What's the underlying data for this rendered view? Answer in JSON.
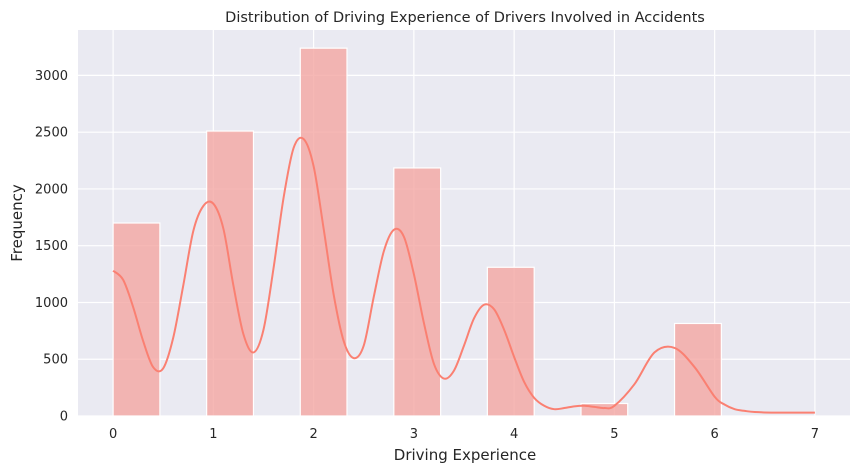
{
  "chart_data": {
    "type": "bar",
    "title": "Distribution of Driving Experience of Drivers Involved in Accidents",
    "xlabel": "Driving Experience",
    "ylabel": "Frequency",
    "xlim": [
      -0.35,
      7.35
    ],
    "ylim": [
      0,
      3400
    ],
    "xticks": [
      0,
      1,
      2,
      3,
      4,
      5,
      6,
      7
    ],
    "yticks": [
      0,
      500,
      1000,
      1500,
      2000,
      2500,
      3000
    ],
    "grid": true,
    "bars": [
      {
        "x0": 0.0,
        "x1": 0.467,
        "value": 1700
      },
      {
        "x0": 0.933,
        "x1": 1.4,
        "value": 2510
      },
      {
        "x0": 1.867,
        "x1": 2.333,
        "value": 3240
      },
      {
        "x0": 2.8,
        "x1": 3.267,
        "value": 2185
      },
      {
        "x0": 3.733,
        "x1": 4.2,
        "value": 1310
      },
      {
        "x0": 4.667,
        "x1": 5.133,
        "value": 110
      },
      {
        "x0": 5.6,
        "x1": 6.067,
        "value": 815
      }
    ],
    "kde": {
      "x": [
        0.0,
        0.1,
        0.2,
        0.3,
        0.4,
        0.5,
        0.6,
        0.7,
        0.8,
        0.9,
        1.0,
        1.1,
        1.2,
        1.3,
        1.4,
        1.5,
        1.6,
        1.7,
        1.8,
        1.9,
        2.0,
        2.1,
        2.2,
        2.3,
        2.4,
        2.5,
        2.6,
        2.7,
        2.8,
        2.9,
        3.0,
        3.1,
        3.2,
        3.3,
        3.4,
        3.5,
        3.6,
        3.7,
        3.8,
        3.9,
        4.0,
        4.1,
        4.2,
        4.3,
        4.4,
        4.5,
        4.6,
        4.7,
        4.8,
        4.9,
        5.0,
        5.2,
        5.4,
        5.6,
        5.8,
        6.0,
        6.1,
        6.2,
        6.3,
        6.4,
        6.6,
        6.8,
        7.0
      ],
      "y": [
        1280,
        1200,
        960,
        660,
        430,
        420,
        690,
        1150,
        1630,
        1850,
        1870,
        1650,
        1150,
        720,
        560,
        760,
        1300,
        1920,
        2360,
        2440,
        2200,
        1650,
        1070,
        660,
        510,
        620,
        1050,
        1450,
        1640,
        1580,
        1250,
        820,
        460,
        330,
        400,
        620,
        860,
        980,
        940,
        760,
        520,
        300,
        160,
        90,
        60,
        70,
        85,
        90,
        80,
        70,
        90,
        280,
        560,
        600,
        430,
        170,
        100,
        60,
        45,
        35,
        30,
        30,
        30
      ]
    },
    "colors": {
      "bar": "#f4a4a0",
      "kde": "#fa8072",
      "background": "#eaeaf2",
      "grid": "#ffffff"
    }
  }
}
